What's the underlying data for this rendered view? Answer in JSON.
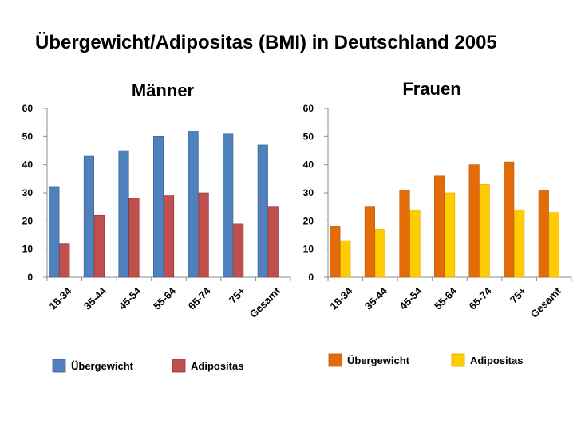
{
  "page": {
    "title": "Übergewicht/Adipositas (BMI) in Deutschland 2005"
  },
  "chart_data": [
    {
      "type": "bar",
      "title": "Männer",
      "categories": [
        "18-34",
        "35-44",
        "45-54",
        "55-64",
        "65-74",
        "75+",
        "Gesamt"
      ],
      "ylim": [
        0,
        60
      ],
      "yticks": [
        0,
        10,
        20,
        30,
        40,
        50,
        60
      ],
      "grid": false,
      "legend_position": "bottom",
      "series": [
        {
          "name": "Übergewicht",
          "color": "#4F81BD",
          "stroke": "#385D8A",
          "values": [
            32,
            43,
            45,
            50,
            52,
            51,
            47
          ]
        },
        {
          "name": "Adipositas",
          "color": "#C0504D",
          "stroke": "#8C3836",
          "values": [
            12,
            22,
            28,
            29,
            30,
            19,
            25
          ]
        }
      ]
    },
    {
      "type": "bar",
      "title": "Frauen",
      "categories": [
        "18-34",
        "35-44",
        "45-54",
        "55-64",
        "65-74",
        "75+",
        "Gesamt"
      ],
      "ylim": [
        0,
        60
      ],
      "yticks": [
        0,
        10,
        20,
        30,
        40,
        50,
        60
      ],
      "grid": false,
      "legend_position": "bottom",
      "series": [
        {
          "name": "Übergewicht",
          "color": "#E36C09",
          "stroke": "#B65708",
          "values": [
            18,
            25,
            31,
            36,
            40,
            41,
            31
          ]
        },
        {
          "name": "Adipositas",
          "color": "#FFCC00",
          "stroke": "#D9A900",
          "values": [
            13,
            17,
            24,
            30,
            33,
            24,
            23
          ]
        }
      ]
    }
  ]
}
